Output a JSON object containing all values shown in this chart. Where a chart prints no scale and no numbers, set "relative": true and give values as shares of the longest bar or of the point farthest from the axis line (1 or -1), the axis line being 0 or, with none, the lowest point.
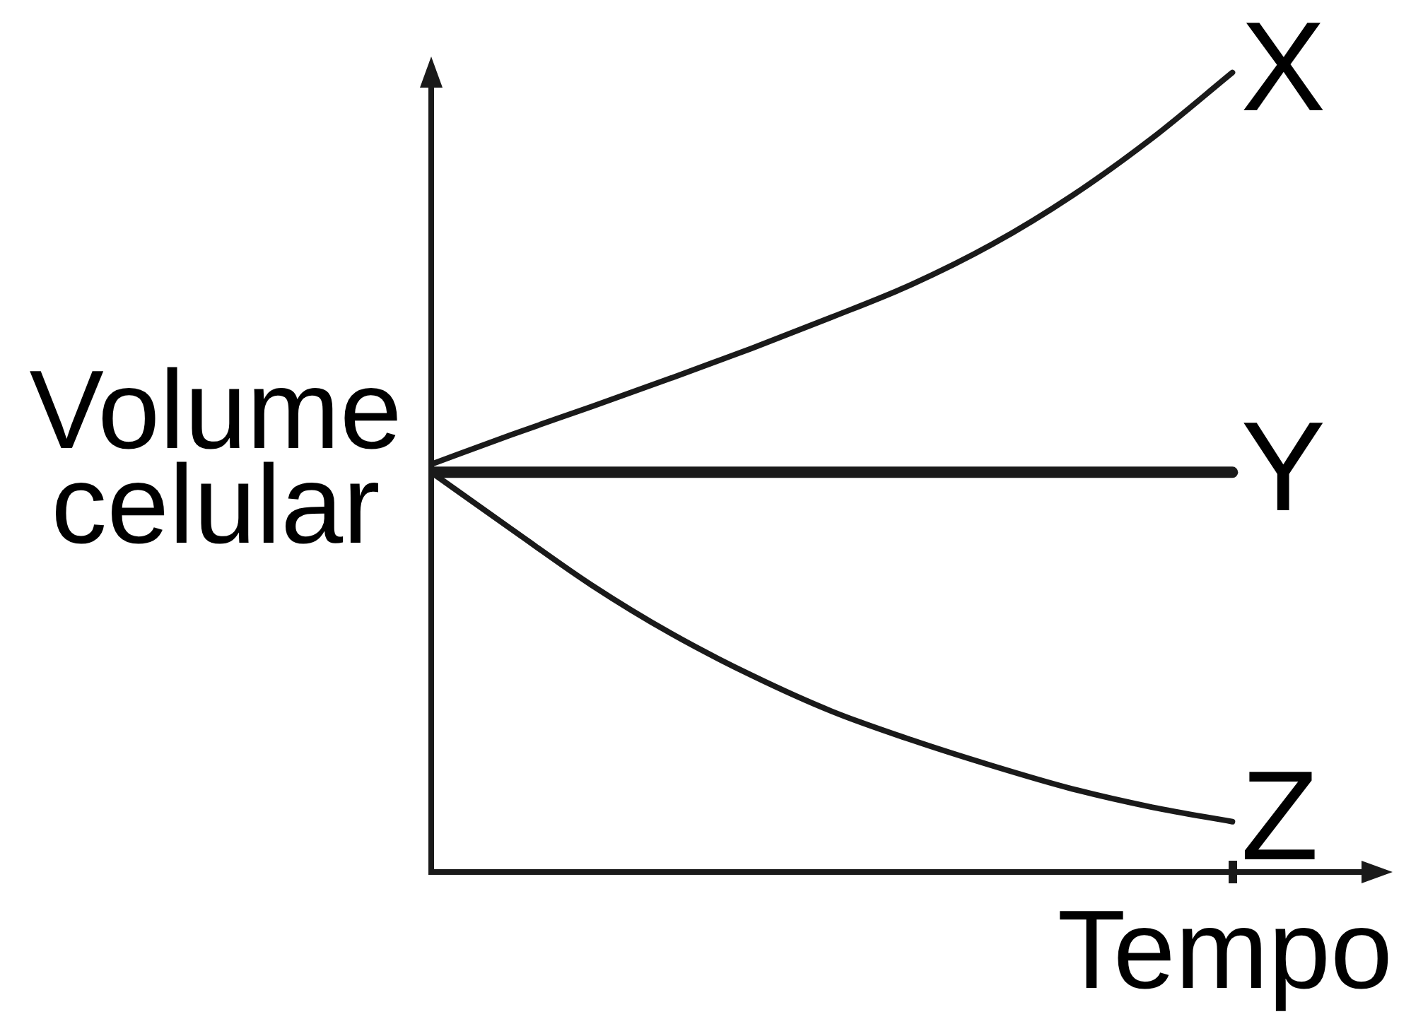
{
  "chart_data": {
    "type": "line",
    "xlabel": "Tempo",
    "ylabel": "Volume celular",
    "relative": true,
    "marker": "none",
    "categories": [
      null,
      null,
      null,
      null,
      null,
      null,
      null,
      null,
      null,
      null,
      null
    ],
    "series": [
      {
        "name": "X",
        "color": "#1a1a1a",
        "values": [
          0.51,
          0.547,
          0.582,
          0.618,
          0.655,
          0.694,
          0.735,
          0.785,
          0.846,
          0.918,
          1
        ]
      },
      {
        "name": "Y",
        "color": "#1a1a1a",
        "values": [
          0.5,
          0.5,
          0.5,
          0.5,
          0.5,
          0.5,
          0.5,
          0.5,
          0.5,
          0.5,
          0.5
        ]
      },
      {
        "name": "Z",
        "color": "#1a1a1a",
        "values": [
          0.5,
          0.429,
          0.359,
          0.298,
          0.246,
          0.201,
          0.165,
          0.133,
          0.104,
          0.081,
          0.063
        ]
      }
    ]
  }
}
